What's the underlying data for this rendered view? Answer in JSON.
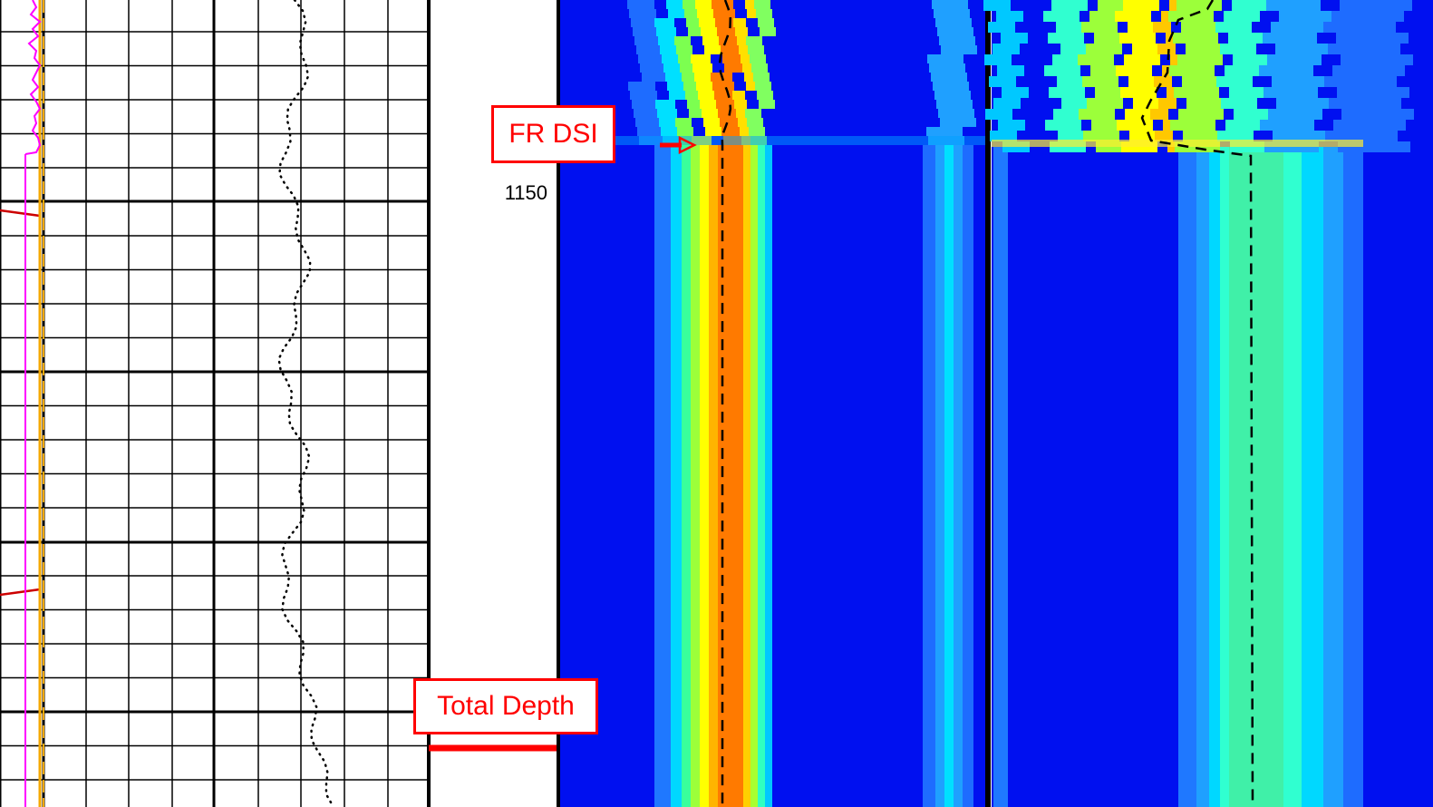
{
  "annotations": {
    "fr_dsi": "FR DSI",
    "total_depth": "Total Depth"
  },
  "depth_track": {
    "label": "1150"
  },
  "colors": {
    "callout": "#ff0000",
    "gamma_curve": "#ff00ff",
    "caliper_curve": "#cc0000",
    "bit_size": "#f5a800",
    "image_background": "#0010f0",
    "dashed_trace": "#000000"
  },
  "chart_data": [
    {
      "type": "line",
      "panel": "log-track-left",
      "title": "",
      "grid": true,
      "series": [
        {
          "values": [
            0.4,
            0.5,
            0.35,
            0.6,
            0.4,
            0.55,
            0.3,
            0.5,
            0.45,
            0.6,
            0.5,
            0.4,
            0.55,
            0.35,
            0.5,
            0.6,
            0.45,
            0.5,
            0.4,
            0.55,
            0.6,
            0.5
          ]
        },
        {
          "values": [
            0.3,
            0.3,
            0.3,
            0.3,
            0.3,
            0.3,
            0.3,
            0.3,
            0.3,
            0.3,
            0.3,
            0.3,
            0.3,
            0.3,
            0.3,
            0.3,
            0.3,
            0.3,
            0.3,
            0.3,
            0.3,
            0.3
          ]
        }
      ]
    },
    {
      "type": "heatmap",
      "panel": "waveform-image-tracks",
      "title": "",
      "depth_marker": 1150,
      "grid": false
    }
  ]
}
